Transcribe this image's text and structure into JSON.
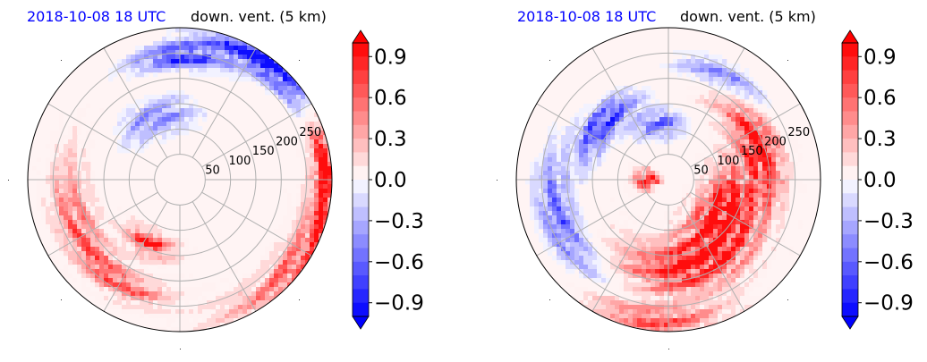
{
  "chart_data": [
    {
      "type": "heatmap",
      "projection": "polar",
      "title_left": "2018-10-08 18 UTC",
      "title_right": "down. vent. (5 km)",
      "title_left_color": "#0000ff",
      "radial_labels": [
        "50",
        "100",
        "150",
        "200",
        "250"
      ],
      "radial_values": [
        50,
        100,
        150,
        200,
        250
      ],
      "angular_grid_deg": [
        0,
        30,
        60,
        90,
        120,
        150,
        180,
        210,
        240,
        270,
        300,
        330
      ],
      "colorbar": {
        "ticks": [
          "−0.9",
          "−0.6",
          "−0.3",
          "0.0",
          "0.3",
          "0.6",
          "0.9"
        ],
        "tick_values": [
          -0.9,
          -0.6,
          -0.3,
          0.0,
          0.3,
          0.6,
          0.9
        ],
        "range": [
          -1.0,
          1.0
        ],
        "extend": "both",
        "colormap": "bwr",
        "levels": 20
      },
      "features": [
        {
          "sign": "negative",
          "angle_deg": 55,
          "radius": 285,
          "width": 45,
          "intensity": 1.0
        },
        {
          "sign": "negative",
          "angle_deg": 90,
          "radius": 245,
          "width": 40,
          "intensity": 0.8
        },
        {
          "sign": "negative",
          "angle_deg": 110,
          "radius": 130,
          "width": 60,
          "intensity": 0.5
        },
        {
          "sign": "positive",
          "angle_deg": 5,
          "radius": 290,
          "width": 35,
          "intensity": 1.0
        },
        {
          "sign": "positive",
          "angle_deg": 325,
          "radius": 285,
          "width": 60,
          "intensity": 0.6
        },
        {
          "sign": "positive",
          "angle_deg": 245,
          "radius": 140,
          "width": 35,
          "intensity": 0.8
        },
        {
          "sign": "positive",
          "angle_deg": 205,
          "radius": 220,
          "width": 60,
          "intensity": 0.5
        },
        {
          "sign": "positive",
          "angle_deg": 240,
          "radius": 235,
          "width": 40,
          "intensity": 0.5
        }
      ]
    },
    {
      "type": "heatmap",
      "projection": "polar",
      "title_left": "2018-10-08 18 UTC",
      "title_right": "down. vent. (5 km)",
      "title_left_color": "#0000ff",
      "radial_labels": [
        "50",
        "100",
        "150",
        "200",
        "250"
      ],
      "radial_values": [
        50,
        100,
        150,
        200,
        250
      ],
      "angular_grid_deg": [
        0,
        30,
        60,
        90,
        120,
        150,
        180,
        210,
        240,
        270,
        300,
        330
      ],
      "colorbar": {
        "ticks": [
          "−0.9",
          "−0.6",
          "−0.3",
          "0.0",
          "0.3",
          "0.6",
          "0.9"
        ],
        "tick_values": [
          -0.9,
          -0.6,
          -0.3,
          0.0,
          0.3,
          0.6,
          0.9
        ],
        "range": [
          -1.0,
          1.0
        ],
        "extend": "both",
        "colormap": "bwr",
        "levels": 20
      },
      "features": [
        {
          "sign": "positive",
          "angle_deg": 330,
          "radius": 120,
          "width": 70,
          "intensity": 1.0
        },
        {
          "sign": "positive",
          "angle_deg": 290,
          "radius": 175,
          "width": 80,
          "intensity": 1.0
        },
        {
          "sign": "positive",
          "angle_deg": 20,
          "radius": 190,
          "width": 60,
          "intensity": 0.9
        },
        {
          "sign": "positive",
          "angle_deg": 180,
          "radius": 40,
          "width": 40,
          "intensity": 1.0
        },
        {
          "sign": "positive",
          "angle_deg": 265,
          "radius": 280,
          "width": 45,
          "intensity": 0.6
        },
        {
          "sign": "negative",
          "angle_deg": 140,
          "radius": 170,
          "width": 50,
          "intensity": 0.8
        },
        {
          "sign": "negative",
          "angle_deg": 100,
          "radius": 110,
          "width": 45,
          "intensity": 0.6
        },
        {
          "sign": "negative",
          "angle_deg": 200,
          "radius": 230,
          "width": 60,
          "intensity": 0.6
        },
        {
          "sign": "negative",
          "angle_deg": 60,
          "radius": 230,
          "width": 45,
          "intensity": 0.5
        }
      ]
    }
  ]
}
